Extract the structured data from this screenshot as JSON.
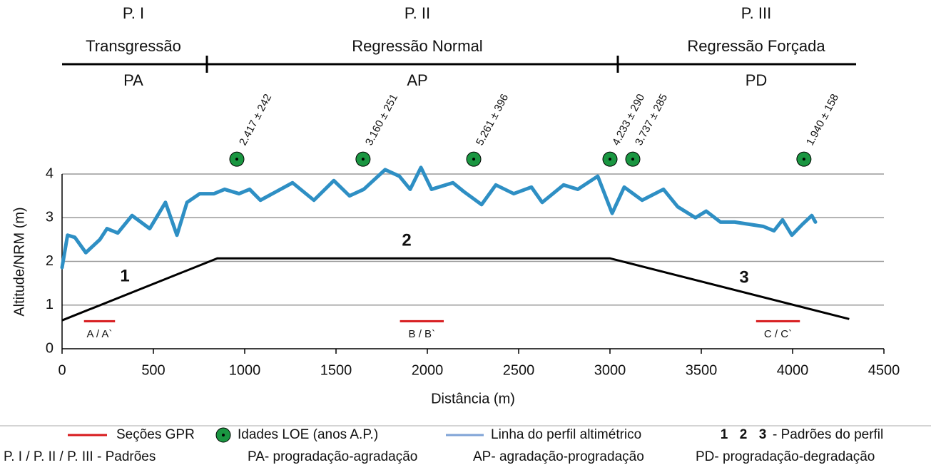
{
  "chart_data": {
    "type": "line",
    "phases": [
      {
        "label": "P. I",
        "name": "Transgressão",
        "code": "PA"
      },
      {
        "label": "P. II",
        "name": "Regressão Normal",
        "code": "AP"
      },
      {
        "label": "P. III",
        "name": "Regressão Forçada",
        "code": "PD"
      }
    ],
    "x_label": "Distância (m)",
    "y_label": "Altitude/NRM (m)",
    "xlim": [
      0,
      4500
    ],
    "ylim": [
      0,
      4.4
    ],
    "xticks": [
      0,
      500,
      1000,
      1500,
      2000,
      2500,
      3000,
      3500,
      4000,
      4500
    ],
    "yticks": [
      0,
      1,
      2,
      3,
      4
    ],
    "grid": true,
    "series": [
      {
        "name": "Linha do perfil altimétrico",
        "color": "#2e8fc4",
        "x": [
          0,
          30,
          70,
          130,
          207,
          246,
          305,
          383,
          480,
          566,
          629,
          684,
          754,
          832,
          890,
          969,
          1027,
          1086,
          1262,
          1379,
          1488,
          1574,
          1652,
          1769,
          1847,
          1906,
          1965,
          2023,
          2140,
          2199,
          2297,
          2375,
          2473,
          2570,
          2629,
          2746,
          2824,
          2933,
          3012,
          3078,
          3176,
          3293,
          3371,
          3468,
          3527,
          3605,
          3683,
          3840,
          3898,
          3945,
          3996,
          4054,
          4105,
          4125
        ],
        "values": [
          1.86,
          2.6,
          2.55,
          2.2,
          2.5,
          2.75,
          2.65,
          3.05,
          2.75,
          3.35,
          2.6,
          3.35,
          3.55,
          3.55,
          3.65,
          3.55,
          3.65,
          3.4,
          3.8,
          3.4,
          3.85,
          3.5,
          3.65,
          4.1,
          3.95,
          3.65,
          4.15,
          3.65,
          3.8,
          3.6,
          3.3,
          3.75,
          3.55,
          3.7,
          3.35,
          3.75,
          3.65,
          3.95,
          3.1,
          3.7,
          3.4,
          3.65,
          3.25,
          3.0,
          3.15,
          2.9,
          2.9,
          2.8,
          2.7,
          2.95,
          2.6,
          2.85,
          3.05,
          2.9
        ]
      }
    ],
    "patterns": {
      "labels": [
        "1",
        "2",
        "3"
      ],
      "legend": "- Padrões do perfil",
      "color": "#000000",
      "x": [
        0,
        850,
        3000,
        4310
      ],
      "values": [
        0.65,
        2.07,
        2.07,
        0.68
      ]
    },
    "gpr": {
      "name": "Seções GPR",
      "color": "#d7191c",
      "segments": [
        {
          "label": "A / A`",
          "x": [
            120,
            290
          ],
          "value": 0.63
        },
        {
          "label": "B / B`",
          "x": [
            1850,
            2090
          ],
          "value": 0.63
        },
        {
          "label": "C / C`",
          "x": [
            3800,
            4040
          ],
          "value": 0.63
        }
      ]
    },
    "loe": {
      "name": "Idades LOE (anos A.P.)",
      "color": "#1a9641",
      "x": [
        957,
        1648,
        2254,
        3000,
        3125,
        4062
      ],
      "values": [
        4.34,
        4.34,
        4.34,
        4.34,
        4.34,
        4.34
      ],
      "labels": [
        "2.417 ± 242",
        "3.160 ± 251",
        "5.261 ± 396",
        "4.233 ± 290",
        "3.737 ± 285",
        "1.940 ± 158"
      ]
    },
    "notes": [
      "P. I / P. II / P. III - Padrões",
      "PA- progradação-agradação",
      "AP- agradação-progradação",
      "PD- progradação-degradação"
    ]
  }
}
